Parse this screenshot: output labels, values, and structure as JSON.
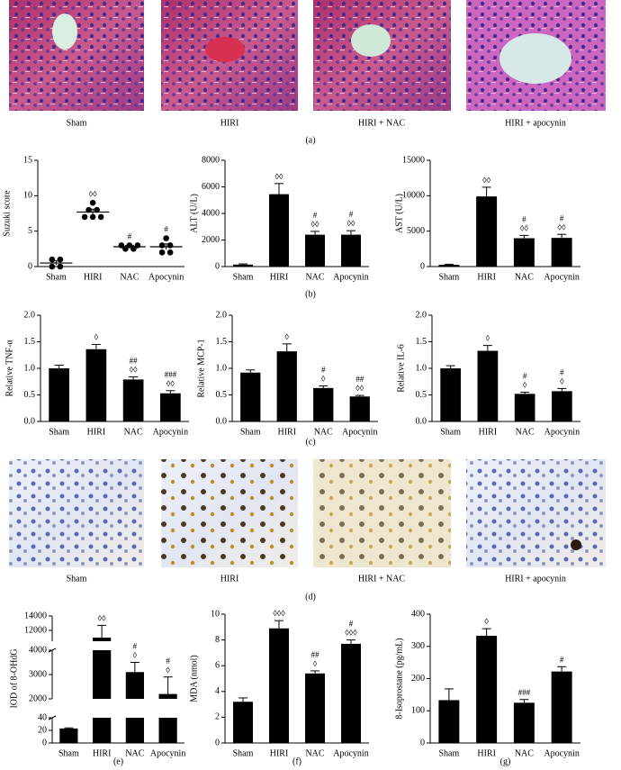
{
  "histology_top": {
    "captions": [
      "Sham",
      "HIRI",
      "HIRI + NAC",
      "HIRI + apocynin"
    ],
    "label": "(a)"
  },
  "panel_labels": {
    "b": "(b)",
    "c": "(c)"
  },
  "histology_bottom": {
    "captions": [
      "Sham",
      "HIRI",
      "HIRI + NAC",
      "HIRI + apocynin"
    ],
    "label": "(d)"
  },
  "chart_data": [
    {
      "type": "dotplot",
      "ylabel": "Suzuki score",
      "categories": [
        "Sham",
        "HIRI",
        "NAC",
        "Apocynin"
      ],
      "points": [
        [
          1,
          1,
          0,
          0
        ],
        [
          9,
          8,
          8,
          7,
          7,
          7
        ],
        [
          3,
          3,
          3,
          2.5,
          2.5
        ],
        [
          4,
          3,
          3,
          2,
          2
        ]
      ],
      "values": [
        0.5,
        7.7,
        2.8,
        2.8
      ],
      "errors": [
        0.3,
        0.4,
        0.2,
        0.4
      ],
      "annotations": [
        null,
        [
          "◊◊"
        ],
        [
          "#"
        ],
        [
          "#"
        ]
      ],
      "ylim": [
        0,
        15
      ],
      "yticks": [
        0,
        5,
        10,
        15
      ]
    },
    {
      "type": "bar",
      "ylabel": "ALT (U/L)",
      "categories": [
        "Sham",
        "HIRI",
        "NAC",
        "Apocynin"
      ],
      "values": [
        150,
        5450,
        2400,
        2400
      ],
      "errors": [
        50,
        800,
        250,
        300
      ],
      "annotations": [
        null,
        [
          "◊◊"
        ],
        [
          "#",
          "◊◊"
        ],
        [
          "#",
          "◊◊"
        ]
      ],
      "ylim": [
        0,
        8000
      ],
      "yticks": [
        0,
        2000,
        4000,
        6000,
        8000
      ]
    },
    {
      "type": "bar",
      "ylabel": "AST (U/L)",
      "categories": [
        "Sham",
        "HIRI",
        "NAC",
        "Apocynin"
      ],
      "values": [
        250,
        9900,
        4000,
        4050
      ],
      "errors": [
        80,
        1300,
        400,
        500
      ],
      "annotations": [
        null,
        [
          "◊◊"
        ],
        [
          "#",
          "◊◊"
        ],
        [
          "#",
          "◊◊"
        ]
      ],
      "ylim": [
        0,
        15000
      ],
      "yticks": [
        0,
        5000,
        10000,
        15000
      ]
    },
    {
      "type": "bar",
      "ylabel": "Relative TNF-α",
      "categories": [
        "Sham",
        "HIRI",
        "NAC",
        "Apocynin"
      ],
      "values": [
        1.0,
        1.36,
        0.79,
        0.53
      ],
      "errors": [
        0.06,
        0.09,
        0.05,
        0.05
      ],
      "annotations": [
        null,
        [
          "◊"
        ],
        [
          "##",
          "◊◊"
        ],
        [
          "###",
          "◊◊"
        ]
      ],
      "ylim": [
        0,
        2
      ],
      "yticks": [
        {
          "value": 0,
          "label": "0.0"
        },
        0.5,
        {
          "value": 1,
          "label": "1.0"
        },
        1.5,
        {
          "value": 2,
          "label": "2.0"
        }
      ]
    },
    {
      "type": "bar",
      "ylabel": "Relative MCP-1",
      "categories": [
        "Sham",
        "HIRI",
        "NAC",
        "Apocynin"
      ],
      "values": [
        0.92,
        1.32,
        0.63,
        0.47
      ],
      "errors": [
        0.05,
        0.14,
        0.04,
        0.02
      ],
      "annotations": [
        null,
        [
          "◊"
        ],
        [
          "#",
          "◊"
        ],
        [
          "##",
          "◊◊"
        ]
      ],
      "ylim": [
        0,
        2
      ],
      "yticks": [
        {
          "value": 0,
          "label": "0.0"
        },
        0.5,
        {
          "value": 1,
          "label": "1.0"
        },
        1.5,
        {
          "value": 2,
          "label": "2.0"
        }
      ]
    },
    {
      "type": "bar",
      "ylabel": "Relative IL-6",
      "categories": [
        "Sham",
        "HIRI",
        "NAC",
        "Apocynin"
      ],
      "values": [
        1.0,
        1.33,
        0.52,
        0.57
      ],
      "errors": [
        0.05,
        0.1,
        0.03,
        0.05
      ],
      "annotations": [
        null,
        [
          "◊"
        ],
        [
          "#",
          "◊"
        ],
        [
          "#",
          "◊"
        ]
      ],
      "ylim": [
        0,
        2
      ],
      "yticks": [
        {
          "value": 0,
          "label": "0.0"
        },
        0.5,
        {
          "value": 1,
          "label": "1.0"
        },
        1.5,
        {
          "value": 2,
          "label": "2.0"
        }
      ]
    },
    {
      "type": "bar",
      "ylabel": "IOD of 8-OHdG",
      "panel_label": "(e)",
      "categories": [
        "Sham",
        "HIRI",
        "NAC",
        "Apocynin"
      ],
      "values": [
        23,
        11000,
        3100,
        2200
      ],
      "errors": [
        1,
        1700,
        400,
        700
      ],
      "annotations": [
        null,
        [
          "◊◊"
        ],
        [
          "#",
          "◊"
        ],
        [
          "#",
          "◊"
        ]
      ],
      "y_segments": [
        {
          "ylim": [
            0,
            40
          ],
          "yticks": [
            0,
            20,
            40
          ]
        },
        {
          "ylim": [
            2000,
            4000
          ],
          "yticks": [
            2000,
            3000,
            4000
          ]
        },
        {
          "ylim": [
            10500,
            14000
          ],
          "yticks": [
            12000,
            14000
          ]
        }
      ]
    },
    {
      "type": "bar",
      "ylabel": "MDA (nmol)",
      "panel_label": "(f)",
      "categories": [
        "Sham",
        "HIRI",
        "NAC",
        "Apocynin"
      ],
      "values": [
        3.2,
        8.9,
        5.4,
        7.7
      ],
      "errors": [
        0.3,
        0.6,
        0.2,
        0.3
      ],
      "annotations": [
        null,
        [
          "◊◊◊"
        ],
        [
          "##",
          "◊"
        ],
        [
          "#",
          "◊◊◊"
        ]
      ],
      "ylim": [
        0,
        10
      ],
      "yticks": [
        0,
        2,
        4,
        6,
        8,
        10
      ]
    },
    {
      "type": "bar",
      "ylabel": "8-Isoprostane (pg/mL)",
      "panel_label": "(g)",
      "categories": [
        "Sham",
        "HIRI",
        "NAC",
        "Apocynin"
      ],
      "values": [
        133,
        333,
        125,
        222
      ],
      "errors": [
        35,
        22,
        10,
        15
      ],
      "annotations": [
        null,
        [
          "◊"
        ],
        [
          "###"
        ],
        [
          "#"
        ]
      ],
      "ylim": [
        0,
        400
      ],
      "yticks": [
        0,
        100,
        200,
        300,
        400
      ]
    }
  ]
}
